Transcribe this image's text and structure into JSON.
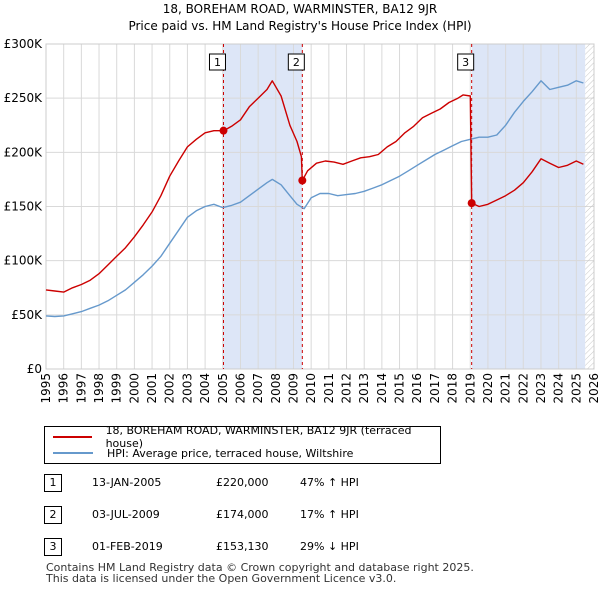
{
  "title_line1": "18, BOREHAM ROAD, WARMINSTER, BA12 9JR",
  "title_line2": "Price paid vs. HM Land Registry's House Price Index (HPI)",
  "chart_data": {
    "type": "line",
    "title": "18, BOREHAM ROAD, WARMINSTER, BA12 9JR\nPrice paid vs. HM Land Registry's House Price Index (HPI)",
    "xlim": [
      1995,
      2026
    ],
    "ylim": [
      0,
      300000
    ],
    "x_ticks": [
      "1995",
      "1996",
      "1997",
      "1998",
      "1999",
      "2000",
      "2001",
      "2002",
      "2003",
      "2004",
      "2005",
      "2006",
      "2007",
      "2008",
      "2009",
      "2010",
      "2011",
      "2012",
      "2013",
      "2014",
      "2015",
      "2016",
      "2017",
      "2018",
      "2019",
      "2020",
      "2021",
      "2022",
      "2023",
      "2024",
      "2025",
      "2026"
    ],
    "y_ticks": [
      {
        "value": 0,
        "label": "£0"
      },
      {
        "value": 50000,
        "label": "£50K"
      },
      {
        "value": 100000,
        "label": "£100K"
      },
      {
        "value": 150000,
        "label": "£150K"
      },
      {
        "value": 200000,
        "label": "£200K"
      },
      {
        "value": 250000,
        "label": "£250K"
      },
      {
        "value": 300000,
        "label": "£300K"
      }
    ],
    "shaded_spans": [
      [
        2005.04,
        2009.5
      ],
      [
        2019.08,
        2025.5
      ]
    ],
    "series": [
      {
        "name": "18, BOREHAM ROAD, WARMINSTER, BA12 9JR (terraced house)",
        "color": "#cc0000",
        "x": [
          1995.0,
          1995.5,
          1996.0,
          1996.5,
          1997.0,
          1997.5,
          1998.0,
          1998.5,
          1999.0,
          1999.5,
          2000.0,
          2000.5,
          2001.0,
          2001.5,
          2002.0,
          2002.5,
          2003.0,
          2003.5,
          2004.0,
          2004.5,
          2005.04,
          2005.5,
          2006.0,
          2006.5,
          2007.0,
          2007.5,
          2007.8,
          2008.3,
          2008.8,
          2009.2,
          2009.45,
          2009.5,
          2009.8,
          2010.3,
          2010.8,
          2011.3,
          2011.8,
          2012.3,
          2012.8,
          2013.3,
          2013.8,
          2014.3,
          2014.8,
          2015.3,
          2015.8,
          2016.3,
          2016.8,
          2017.3,
          2017.8,
          2018.3,
          2018.6,
          2019.0,
          2019.08,
          2019.5,
          2020.0,
          2020.5,
          2021.0,
          2021.5,
          2022.0,
          2022.5,
          2023.0,
          2023.5,
          2024.0,
          2024.5,
          2025.0,
          2025.4
        ],
        "values": [
          73000,
          72000,
          71000,
          75000,
          78000,
          82000,
          88000,
          96000,
          104000,
          112000,
          122000,
          133000,
          145000,
          160000,
          178000,
          192000,
          205000,
          212000,
          218000,
          220000,
          220000,
          224000,
          230000,
          242000,
          250000,
          258000,
          266000,
          252000,
          225000,
          210000,
          196000,
          174000,
          183000,
          190000,
          192000,
          191000,
          189000,
          192000,
          195000,
          196000,
          198000,
          205000,
          210000,
          218000,
          224000,
          232000,
          236000,
          240000,
          246000,
          250000,
          253000,
          252000,
          153130,
          150000,
          152000,
          156000,
          160000,
          165000,
          172000,
          182000,
          194000,
          190000,
          186000,
          188000,
          192000,
          189000
        ]
      },
      {
        "name": "HPI: Average price, terraced house, Wiltshire",
        "color": "#6699cc",
        "x": [
          1995.0,
          1995.5,
          1996.0,
          1996.5,
          1997.0,
          1997.5,
          1998.0,
          1998.5,
          1999.0,
          1999.5,
          2000.0,
          2000.5,
          2001.0,
          2001.5,
          2002.0,
          2002.5,
          2003.0,
          2003.5,
          2004.0,
          2004.5,
          2005.0,
          2005.5,
          2006.0,
          2006.5,
          2007.0,
          2007.5,
          2007.8,
          2008.3,
          2008.8,
          2009.2,
          2009.6,
          2010.0,
          2010.5,
          2011.0,
          2011.5,
          2012.0,
          2012.5,
          2013.0,
          2013.5,
          2014.0,
          2014.5,
          2015.0,
          2015.5,
          2016.0,
          2016.5,
          2017.0,
          2017.5,
          2018.0,
          2018.5,
          2019.0,
          2019.5,
          2020.0,
          2020.5,
          2021.0,
          2021.5,
          2022.0,
          2022.5,
          2023.0,
          2023.5,
          2024.0,
          2024.5,
          2025.0,
          2025.4
        ],
        "values": [
          49000,
          48500,
          49000,
          51000,
          53000,
          56000,
          59000,
          63000,
          68000,
          73000,
          80000,
          87000,
          95000,
          104000,
          116000,
          128000,
          140000,
          146000,
          150000,
          152000,
          149000,
          151000,
          154000,
          160000,
          166000,
          172000,
          175000,
          170000,
          160000,
          152000,
          148000,
          158000,
          162000,
          162000,
          160000,
          161000,
          162000,
          164000,
          167000,
          170000,
          174000,
          178000,
          183000,
          188000,
          193000,
          198000,
          202000,
          206000,
          210000,
          212000,
          214000,
          214000,
          216000,
          225000,
          237000,
          247000,
          256000,
          266000,
          258000,
          260000,
          262000,
          266000,
          264000
        ]
      }
    ],
    "markers": [
      {
        "label": "1",
        "x": 2005.04,
        "y": 220000
      },
      {
        "label": "2",
        "x": 2009.5,
        "y": 174000
      },
      {
        "label": "3",
        "x": 2019.08,
        "y": 153130
      }
    ]
  },
  "legend": {
    "property_label": "18, BOREHAM ROAD, WARMINSTER, BA12 9JR (terraced house)",
    "hpi_label": "HPI: Average price, terraced house, Wiltshire",
    "property_color": "#cc0000",
    "hpi_color": "#6699cc"
  },
  "transactions": [
    {
      "num": "1",
      "date": "13-JAN-2005",
      "price": "£220,000",
      "hpi_change": "47% ↑ HPI"
    },
    {
      "num": "2",
      "date": "03-JUL-2009",
      "price": "£174,000",
      "hpi_change": "17% ↑ HPI"
    },
    {
      "num": "3",
      "date": "01-FEB-2019",
      "price": "£153,130",
      "hpi_change": "29% ↓ HPI"
    }
  ],
  "footer": {
    "line1": "Contains HM Land Registry data © Crown copyright and database right 2025.",
    "line2": "This data is licensed under the Open Government Licence v3.0."
  }
}
